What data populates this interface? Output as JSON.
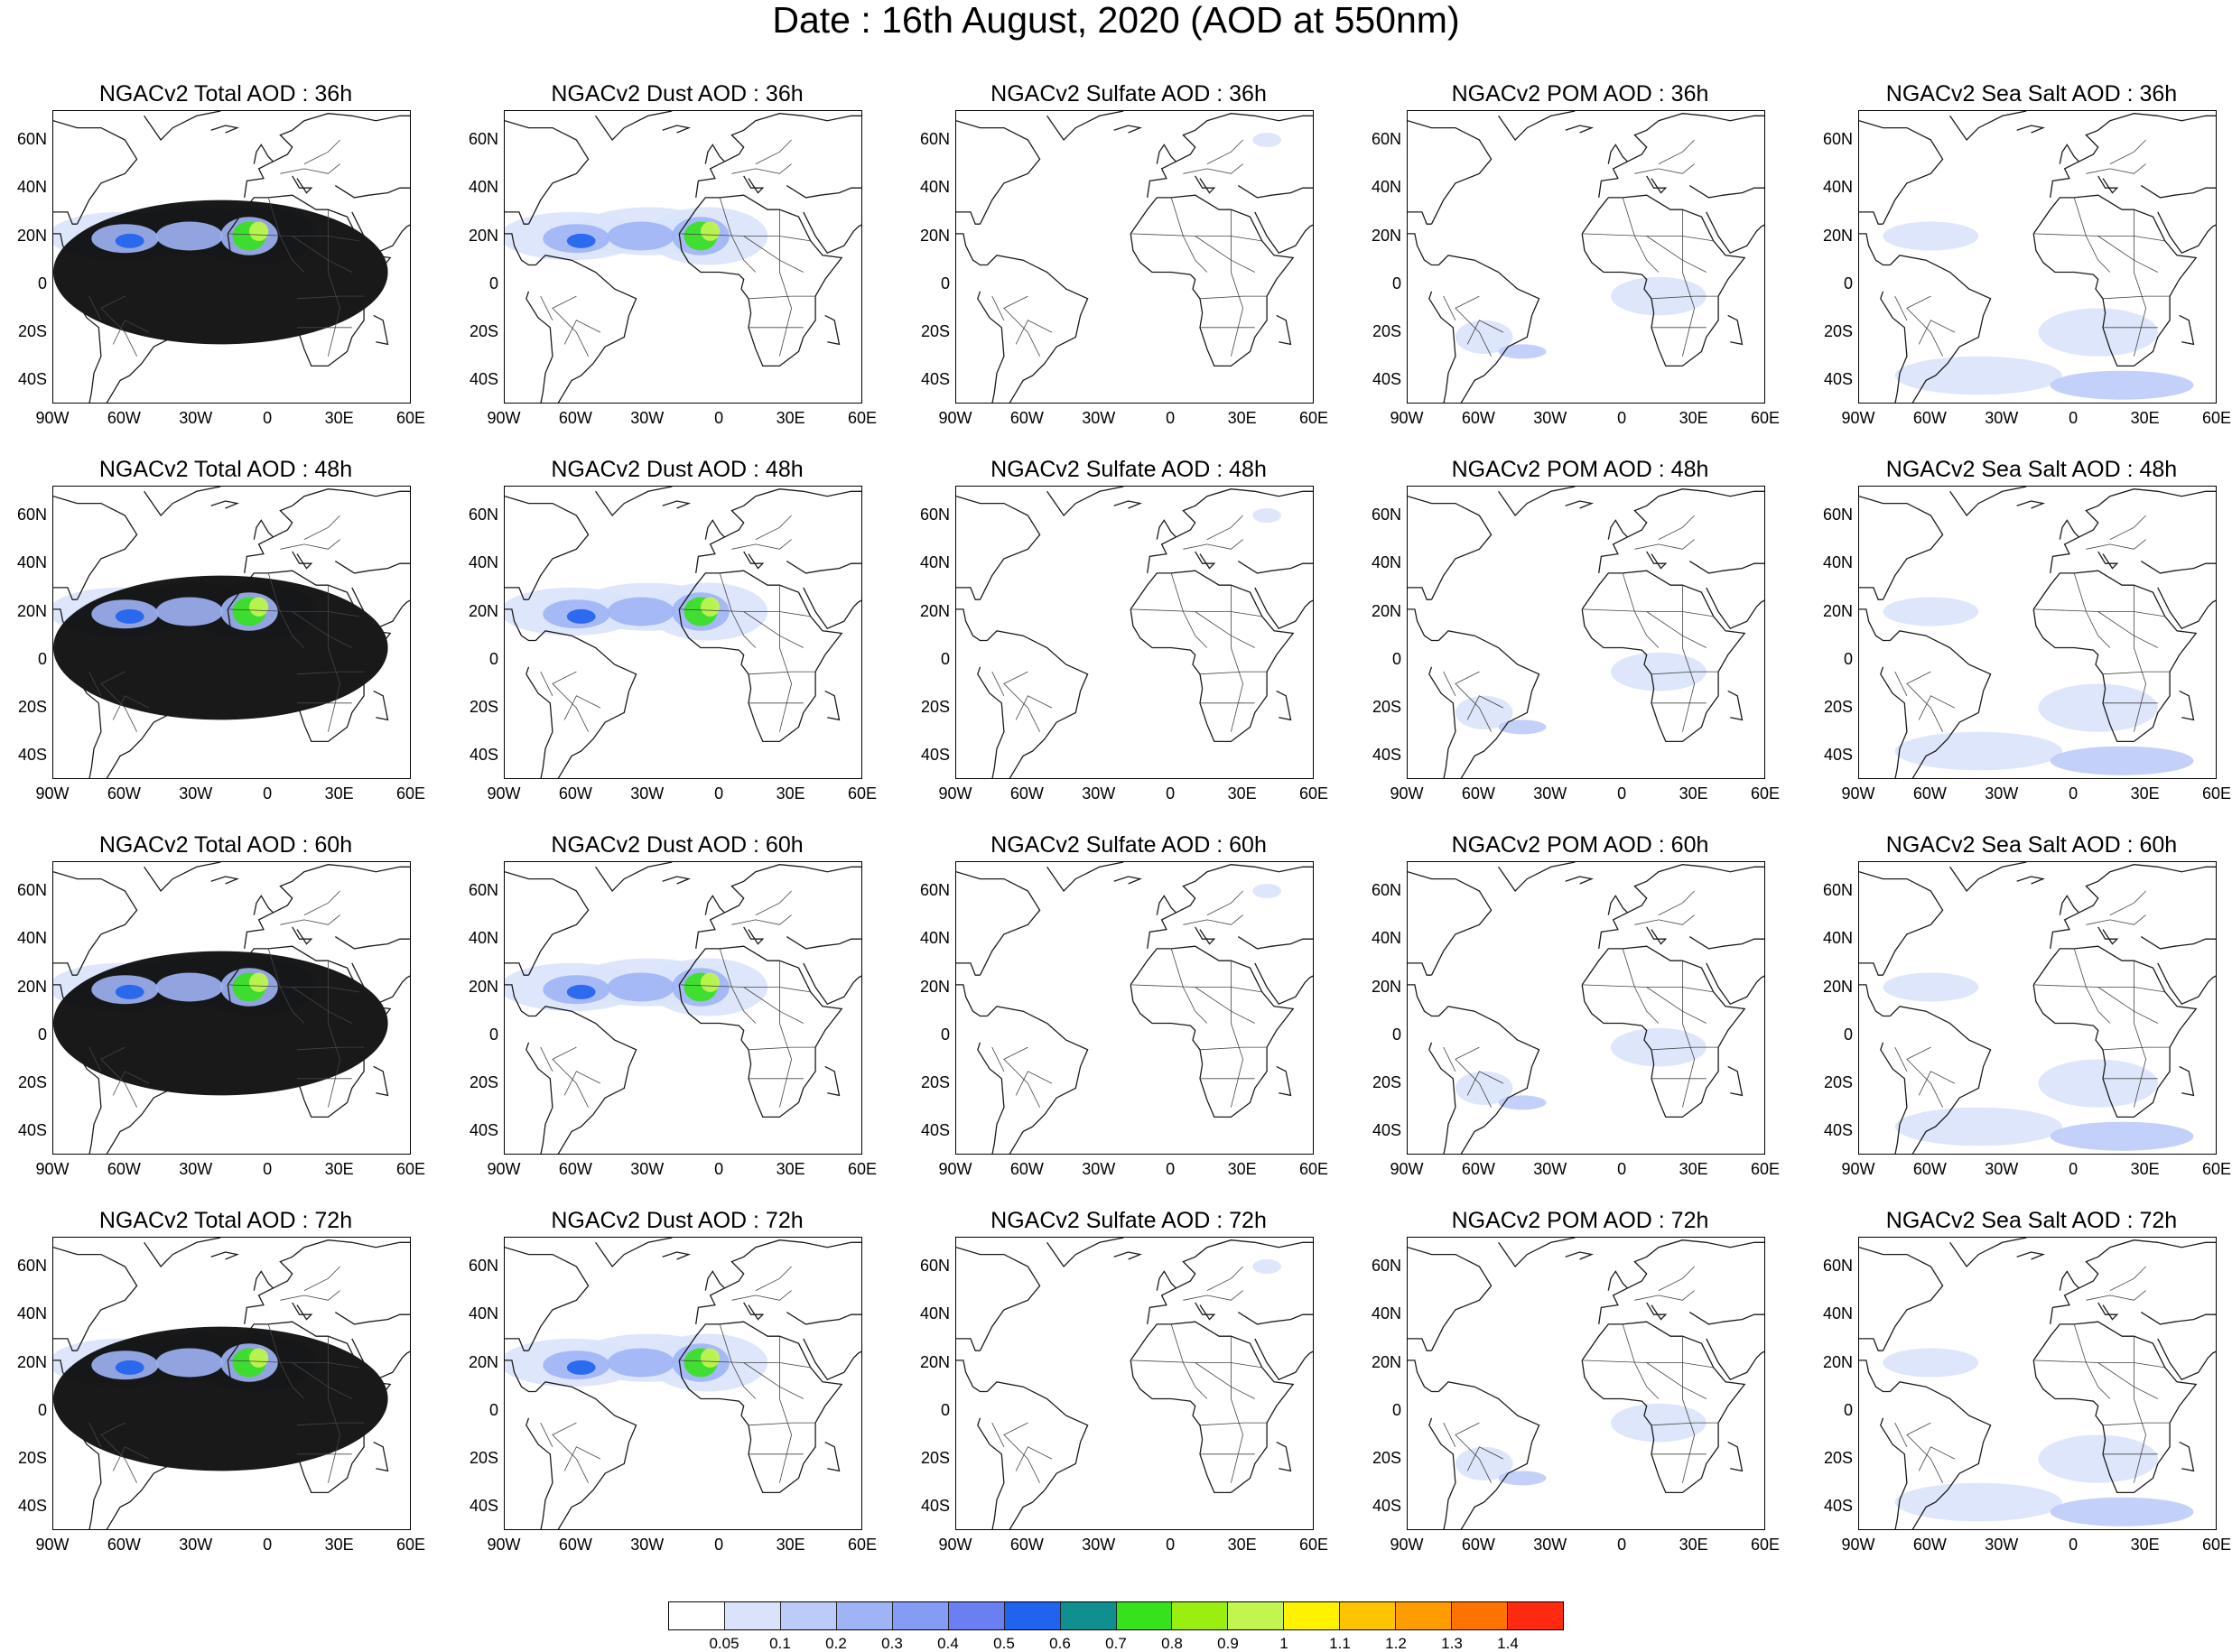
{
  "title": "Date : 16th August, 2020 (AOD at 550nm)",
  "lat_labels": [
    "60N",
    "40N",
    "20N",
    "0",
    "20S",
    "40S"
  ],
  "lat_values": [
    60,
    40,
    20,
    0,
    -20,
    -40
  ],
  "lon_labels": [
    "90W",
    "60W",
    "30W",
    "0",
    "30E",
    "60E"
  ],
  "lon_values": [
    -90,
    -60,
    -30,
    0,
    30,
    60
  ],
  "map_extent": {
    "lon": [
      -90,
      60
    ],
    "lat": [
      -50,
      72
    ]
  },
  "species": [
    "total",
    "dust",
    "sulfate",
    "pom",
    "seasalt"
  ],
  "rows": [
    {
      "forecast_hour": "36h",
      "titles": [
        "NGACv2 Total AOD : 36h",
        "NGACv2 Dust AOD : 36h",
        "NGACv2 Sulfate AOD : 36h",
        "NGACv2 POM AOD : 36h",
        "NGACv2 Sea Salt AOD : 36h"
      ]
    },
    {
      "forecast_hour": "48h",
      "titles": [
        "NGACv2 Total AOD : 48h",
        "NGACv2 Dust AOD : 48h",
        "NGACv2 Sulfate AOD : 48h",
        "NGACv2 POM AOD : 48h",
        "NGACv2 Sea Salt AOD : 48h"
      ]
    },
    {
      "forecast_hour": "60h",
      "titles": [
        "NGACv2 Total AOD : 60h",
        "NGACv2 Dust AOD : 60h",
        "NGACv2 Sulfate AOD : 60h",
        "NGACv2 POM AOD : 60h",
        "NGACv2 Sea Salt AOD : 60h"
      ]
    },
    {
      "forecast_hour": "72h",
      "titles": [
        "NGACv2 Total AOD : 72h",
        "NGACv2 Dust AOD : 72h",
        "NGACv2 Sulfate AOD : 72h",
        "NGACv2 POM AOD : 72h",
        "NGACv2 Sea Salt  AOD : 72h"
      ]
    }
  ],
  "colorbar": {
    "colors": [
      "#ffffff",
      "#d9e3fb",
      "#bccbf8",
      "#9fb4f5",
      "#849cf3",
      "#6a7ff0",
      "#1f63ee",
      "#0f8f8f",
      "#35e21b",
      "#9aee10",
      "#c3f550",
      "#fff200",
      "#ffc400",
      "#ff9d00",
      "#ff7400",
      "#ff2a10"
    ],
    "labels": [
      "0.05",
      "0.1",
      "0.2",
      "0.3",
      "0.4",
      "0.5",
      "0.6",
      "0.7",
      "0.8",
      "0.9",
      "1",
      "1.1",
      "1.2",
      "1.3",
      "1.4"
    ]
  },
  "plumes": {
    "total": [
      [
        [
          -62,
          20,
          30,
          10,
          1
        ],
        [
          -30,
          22,
          30,
          10,
          1
        ],
        [
          -5,
          20,
          25,
          12,
          1
        ],
        [
          -20,
          5,
          70,
          30,
          0.5
        ]
      ],
      [
        [
          -60,
          19,
          14,
          6,
          3
        ],
        [
          -33,
          20,
          14,
          6,
          3
        ],
        [
          -8,
          20,
          12,
          8,
          3
        ]
      ],
      [
        [
          -58,
          18,
          6,
          3,
          6
        ],
        [
          -8,
          20,
          7,
          6,
          8
        ],
        [
          -4,
          22,
          4,
          4,
          10
        ]
      ]
    ],
    "dust": [
      [
        [
          -62,
          20,
          30,
          10,
          1
        ],
        [
          -30,
          22,
          30,
          10,
          1
        ],
        [
          -5,
          20,
          25,
          12,
          1
        ]
      ],
      [
        [
          -60,
          19,
          14,
          6,
          3
        ],
        [
          -33,
          20,
          14,
          6,
          3
        ],
        [
          -8,
          20,
          12,
          8,
          3
        ]
      ],
      [
        [
          -58,
          18,
          6,
          3,
          6
        ],
        [
          -8,
          20,
          7,
          6,
          8
        ],
        [
          -4,
          22,
          4,
          4,
          10
        ]
      ]
    ],
    "sulfate": [
      [
        [
          40,
          60,
          6,
          3,
          1
        ]
      ]
    ],
    "pom": [
      [
        [
          -58,
          -22,
          12,
          7,
          1
        ],
        [
          15,
          -5,
          20,
          8,
          1
        ],
        [
          -42,
          -28,
          10,
          3,
          2
        ]
      ]
    ],
    "seasalt": [
      [
        [
          -40,
          -38,
          35,
          8,
          1
        ],
        [
          20,
          -42,
          30,
          6,
          2
        ],
        [
          -60,
          20,
          20,
          6,
          1
        ],
        [
          10,
          -20,
          25,
          10,
          1
        ]
      ]
    ]
  }
}
